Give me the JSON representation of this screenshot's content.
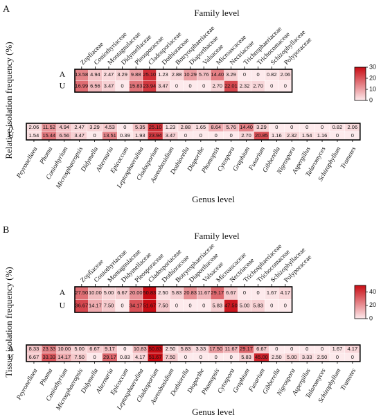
{
  "chart_data": [
    {
      "panel": "A",
      "type": "heatmap",
      "ylabel": "Relative isolation frequency (%)",
      "family_heatmap": {
        "title": "Family level",
        "rows": [
          "A",
          "U"
        ],
        "columns": [
          "Zopfiaceae",
          "Coniothyriaceae",
          "Montagnulaceae",
          "Didymellaceae",
          "Pleosporaceae",
          "Cladosporiaceae",
          "Dothioraceae",
          "Botryosphaeriaceae",
          "Diaporthaceae",
          "Valsaceae",
          "Microascaceae",
          "Nectriaceae",
          "Trichosphaeriaceae",
          "Trichocomaceae",
          "Schizophyllaceae",
          "Polyporaceae"
        ],
        "values": [
          [
            13.58,
            4.94,
            2.47,
            3.29,
            9.88,
            25.1,
            1.23,
            2.88,
            10.29,
            5.76,
            14.4,
            3.29,
            0,
            0,
            0.82,
            2.06
          ],
          [
            16.99,
            6.56,
            3.47,
            0,
            15.83,
            23.94,
            3.47,
            0,
            0,
            0,
            2.7,
            22.01,
            2.32,
            2.7,
            0,
            0
          ]
        ],
        "labels": [
          [
            "13.58",
            "4.94",
            "2.47",
            "3.29",
            "9.88",
            "25.10",
            "1.23",
            "2.88",
            "10.29",
            "5.76",
            "14.40",
            "3.29",
            "0",
            "0",
            "0.82",
            "2.06"
          ],
          [
            "16.99",
            "6.56",
            "3.47",
            "0",
            "15.83",
            "23.94",
            "3.47",
            "0",
            "0",
            "0",
            "2.70",
            "22.01",
            "2.32",
            "2.70",
            "0",
            "0"
          ]
        ]
      },
      "colorbar": {
        "min": 0,
        "max": 30,
        "ticks": [
          "30",
          "20",
          "10",
          "0"
        ]
      },
      "genus_heatmap": {
        "xlabel": "Genus level",
        "rows": [
          "A",
          "U"
        ],
        "columns": [
          "Peyronellaea",
          "Phoma",
          "Coniothyrium",
          "Microsphaeropsis",
          "Didymella",
          "Alternaria",
          "Epicoccum",
          "Leptosphaerulina",
          "Cladosporium",
          "Aureobasidium",
          "Dothiorella",
          "Diaporthe",
          "Phomopsis",
          "Cytospora",
          "Graphium",
          "Fusarium",
          "Gibberella",
          "Nigrospora",
          "Aspergillus",
          "Talaromyces",
          "Schizophyllum",
          "Trametes"
        ],
        "values": [
          [
            2.06,
            11.52,
            4.94,
            2.47,
            3.29,
            4.53,
            0,
            5.35,
            25.1,
            1.23,
            2.88,
            1.65,
            8.64,
            5.76,
            14.4,
            3.29,
            0,
            0,
            0,
            0,
            0.82,
            2.06
          ],
          [
            1.54,
            15.44,
            6.56,
            3.47,
            0,
            13.51,
            0.39,
            1.93,
            23.94,
            3.47,
            0,
            0,
            0,
            0,
            2.7,
            20.85,
            1.16,
            2.32,
            1.54,
            1.16,
            0,
            0
          ]
        ],
        "labels": [
          [
            "2.06",
            "11.52",
            "4.94",
            "2.47",
            "3.29",
            "4.53",
            "0",
            "5.35",
            "25.10",
            "1.23",
            "2.88",
            "1.65",
            "8.64",
            "5.76",
            "14.40",
            "3.29",
            "0",
            "0",
            "0",
            "0",
            "0.82",
            "2.06"
          ],
          [
            "1.54",
            "15.44",
            "6.56",
            "3.47",
            "0",
            "13.51",
            "0.39",
            "1.93",
            "23.94",
            "3.47",
            "0",
            "0",
            "0",
            "0",
            "2.70",
            "20.85",
            "1.16",
            "2.32",
            "1.54",
            "1.16",
            "0",
            "0"
          ]
        ]
      }
    },
    {
      "panel": "B",
      "type": "heatmap",
      "ylabel": "Tissue isolation frequency (%)",
      "family_heatmap": {
        "title": "Family level",
        "rows": [
          "A",
          "U"
        ],
        "columns": [
          "Zopfiaceae",
          "Coniothyriaceae",
          "Montagnulaceae",
          "Didymellaceae",
          "Pleosporaceae",
          "Cladosporiaceae",
          "Dothioraceae",
          "Botryosphaeriaceae",
          "Diaporthaceae",
          "Valsaceae",
          "Microascaceae",
          "Nectriaceae",
          "Trichosphaeriaceae",
          "Trichocomaceae",
          "Schizophyllaceae",
          "Polyporaceae"
        ],
        "values": [
          [
            27.5,
            10.0,
            5.0,
            6.67,
            20.0,
            50.83,
            2.5,
            5.83,
            20.83,
            11.67,
            29.17,
            6.67,
            0,
            0,
            1.67,
            4.17
          ],
          [
            36.67,
            14.17,
            7.5,
            0,
            34.17,
            51.67,
            7.5,
            0,
            0,
            0,
            5.83,
            47.5,
            5.0,
            5.83,
            0,
            0
          ]
        ],
        "labels": [
          [
            "27.50",
            "10.00",
            "5.00",
            "6.67",
            "20.00",
            "50.83",
            "2.50",
            "5.83",
            "20.83",
            "11.67",
            "29.17",
            "6.67",
            "0",
            "0",
            "1.67",
            "4.17"
          ],
          [
            "36.67",
            "14.17",
            "7.50",
            "0",
            "34.17",
            "51.67",
            "7.50",
            "0",
            "0",
            "0",
            "5.83",
            "47.50",
            "5.00",
            "5.83",
            "0",
            "0"
          ]
        ]
      },
      "colorbar": {
        "min": 0,
        "max": 50,
        "ticks": [
          "40",
          "20",
          "0"
        ]
      },
      "genus_heatmap": {
        "xlabel": "Genus level",
        "rows": [
          "A",
          "U"
        ],
        "columns": [
          "Peyronellaea",
          "Phoma",
          "Coniothyrium",
          "Microsphaeropsis",
          "Didymella",
          "Alternaria",
          "Epicoccum",
          "Leptosphaerulina",
          "Cladosporium",
          "Aureobasidium",
          "Dothiorella",
          "Diaporthe",
          "Phomopsis",
          "Cytospora",
          "Graphium",
          "Fusarium",
          "Gibberella",
          "Nigrospora",
          "Aspergillus",
          "Talaromyces",
          "Schizophyllum",
          "Trametes"
        ],
        "values": [
          [
            8.33,
            23.33,
            10.0,
            5.0,
            6.67,
            9.17,
            0,
            10.83,
            50.83,
            2.5,
            5.83,
            3.33,
            17.5,
            11.67,
            29.17,
            6.67,
            0,
            0,
            0,
            0,
            1.67,
            4.17
          ],
          [
            6.67,
            33.33,
            14.17,
            7.5,
            0,
            29.17,
            0.83,
            4.17,
            51.67,
            7.5,
            0,
            0,
            0,
            0,
            5.83,
            45.0,
            2.5,
            5.0,
            3.33,
            2.5,
            0,
            0
          ]
        ],
        "labels": [
          [
            "8.33",
            "23.33",
            "10.00",
            "5.00",
            "6.67",
            "9.17",
            "0",
            "10.83",
            "50.83",
            "2.50",
            "5.83",
            "3.33",
            "17.50",
            "11.67",
            "29.17",
            "6.67",
            "0",
            "0",
            "0",
            "0",
            "1.67",
            "4.17"
          ],
          [
            "6.67",
            "33.33",
            "14.17",
            "7.50",
            "0",
            "29.17",
            "0.83",
            "4.17",
            "51.67",
            "7.50",
            "0",
            "0",
            "0",
            "0",
            "5.83",
            "45.00",
            "2.50",
            "5.00",
            "3.33",
            "2.50",
            "0",
            "0"
          ]
        ]
      }
    }
  ]
}
